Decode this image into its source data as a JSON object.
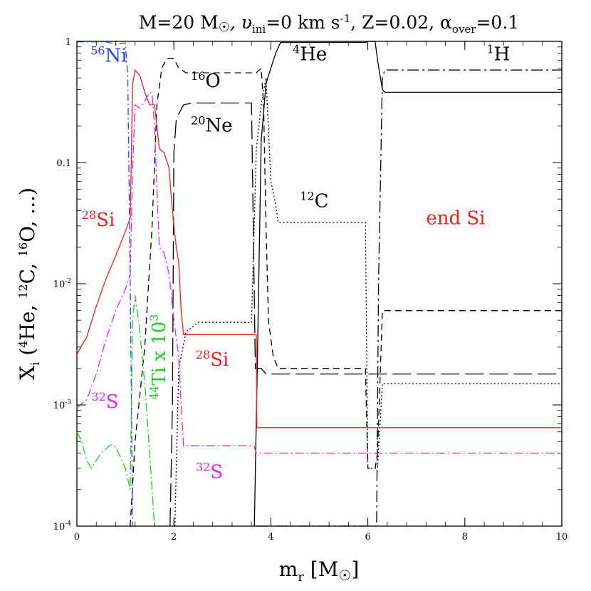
{
  "chart_data": {
    "type": "line",
    "title": "M=20 M☉, υini=0 km s⁻¹, Z=0.02, αover=0.1",
    "title_parts": {
      "mass": "M=20 M",
      "sun": "☉",
      "vel": ", υ",
      "vel_sub": "ini",
      "vel_val": "=0 km s",
      "vel_exp": "-1",
      "z": ", Z=0.02, α",
      "alpha_sub": "over",
      "alpha_val": "=0.1"
    },
    "xlabel": "m_r [M☉]",
    "xlabel_parts": {
      "m": "m",
      "sub": "r",
      "open": " [M",
      "sun": "☉",
      "close": "]"
    },
    "ylabel": "X_i (4He, 12C, 16O, ...)",
    "ylabel_parts": {
      "x": "X",
      "sub": "i",
      "rest1": " (",
      "he_sup": "4",
      "he": "He, ",
      "c_sup": "12",
      "c": "C, ",
      "o_sup": "16",
      "o": "O, ...)"
    },
    "xlim": [
      0,
      10
    ],
    "ylim": [
      0.0001,
      1
    ],
    "yscale": "log",
    "x_ticks": [
      "0",
      "2",
      "4",
      "6",
      "8",
      "10"
    ],
    "y_ticks": [
      {
        "value": 1,
        "label": "1",
        "exp": ""
      },
      {
        "value": 0.1,
        "label": "0.1",
        "exp": ""
      },
      {
        "value": 0.01,
        "label": "10",
        "exp": "-2"
      },
      {
        "value": 0.001,
        "label": "10",
        "exp": "-3"
      },
      {
        "value": 0.0001,
        "label": "10",
        "exp": "-4"
      }
    ],
    "colors": {
      "black": "#000000",
      "red": "#ff1a1a",
      "magenta": "#ee22ee",
      "blue": "#2244ff",
      "green": "#22cc22"
    },
    "annotations": [
      {
        "id": "ni56",
        "sup": "56",
        "text": "Ni",
        "color": "#2244ff",
        "x": 0.28,
        "y": 0.68
      },
      {
        "id": "o16",
        "sup": "16",
        "text": "O",
        "color": "#000000",
        "x": 2.35,
        "y": 0.42
      },
      {
        "id": "ne20",
        "sup": "20",
        "text": "Ne",
        "color": "#000000",
        "x": 2.35,
        "y": 0.18
      },
      {
        "id": "he4",
        "sup": "4",
        "text": "He",
        "color": "#000000",
        "x": 4.45,
        "y": 0.7
      },
      {
        "id": "h1",
        "sup": "1",
        "text": "H",
        "color": "#000000",
        "x": 8.45,
        "y": 0.7
      },
      {
        "id": "si28-left",
        "sup": "28",
        "text": "Si",
        "color": "#ff1a1a",
        "x": 0.1,
        "y": 0.03
      },
      {
        "id": "c12",
        "sup": "12",
        "text": "C",
        "color": "#000000",
        "x": 4.6,
        "y": 0.043
      },
      {
        "id": "end-si",
        "sup": "",
        "text": "end Si",
        "color": "#ff1a1a",
        "x": 7.2,
        "y": 0.031
      },
      {
        "id": "si28-mid",
        "sup": "28",
        "text": "Si",
        "color": "#ff1a1a",
        "x": 2.45,
        "y": 0.0021
      },
      {
        "id": "s32-left",
        "sup": "32",
        "text": "S",
        "color": "#ee22ee",
        "x": 0.3,
        "y": 0.00095
      },
      {
        "id": "s32-mid",
        "sup": "32",
        "text": "S",
        "color": "#ee22ee",
        "x": 2.45,
        "y": 0.00025
      }
    ],
    "ti44_label": {
      "sup": "44",
      "text": "Ti x 10",
      "exp": "3",
      "color": "#22cc22",
      "x": 1.7,
      "y": 0.0011
    },
    "series": [
      {
        "name": "1H",
        "color": "#000000",
        "dash": "16,5,3,5",
        "points": [
          [
            3.7,
            0.0001
          ],
          [
            3.8,
            0.0001
          ],
          [
            4.3,
            0.0001
          ],
          [
            6.18,
            0.0001
          ],
          [
            6.22,
            0.01
          ],
          [
            6.3,
            0.5
          ],
          [
            6.35,
            0.58
          ],
          [
            10,
            0.58
          ]
        ]
      },
      {
        "name": "4He",
        "color": "#000000",
        "dash": "",
        "points": [
          [
            3.66,
            0.0001
          ],
          [
            3.72,
            0.002
          ],
          [
            3.8,
            0.15
          ],
          [
            3.9,
            0.45
          ],
          [
            4.1,
            0.8
          ],
          [
            4.2,
            0.98
          ],
          [
            5.95,
            0.98
          ],
          [
            6.0,
            1.0
          ],
          [
            6.15,
            1.0
          ],
          [
            6.2,
            0.7
          ],
          [
            6.3,
            0.4
          ],
          [
            6.35,
            0.38
          ],
          [
            10,
            0.38
          ]
        ]
      },
      {
        "name": "16O",
        "color": "#000000",
        "dash": "9,6",
        "points": [
          [
            1.1,
            0.0001
          ],
          [
            1.2,
            0.0005
          ],
          [
            1.4,
            0.003
          ],
          [
            1.55,
            0.03
          ],
          [
            1.65,
            0.3
          ],
          [
            1.75,
            0.6
          ],
          [
            1.85,
            0.72
          ],
          [
            2.0,
            0.72
          ],
          [
            2.1,
            0.6
          ],
          [
            2.25,
            0.55
          ],
          [
            3.7,
            0.55
          ],
          [
            3.8,
            0.6
          ],
          [
            3.85,
            0.3
          ],
          [
            3.9,
            0.03
          ],
          [
            3.95,
            0.005
          ],
          [
            4.05,
            0.0025
          ],
          [
            4.15,
            0.002
          ],
          [
            5.95,
            0.002
          ],
          [
            6.0,
            0.0003
          ],
          [
            6.15,
            0.0003
          ],
          [
            6.2,
            0.0004
          ],
          [
            6.3,
            0.006
          ],
          [
            10,
            0.006
          ]
        ]
      },
      {
        "name": "20Ne",
        "color": "#000000",
        "dash": "26,8",
        "points": [
          [
            1.92,
            0.0001
          ],
          [
            1.97,
            0.001
          ],
          [
            2.0,
            0.12
          ],
          [
            2.05,
            0.23
          ],
          [
            2.2,
            0.3
          ],
          [
            2.4,
            0.31
          ],
          [
            3.6,
            0.31
          ],
          [
            3.68,
            0.002
          ],
          [
            3.8,
            0.002
          ],
          [
            3.9,
            0.0018
          ],
          [
            10,
            0.0018
          ]
        ]
      },
      {
        "name": "12C",
        "color": "#000000",
        "dash": "2,3",
        "points": [
          [
            2.02,
            0.0001
          ],
          [
            2.1,
            0.002
          ],
          [
            2.25,
            0.004
          ],
          [
            2.5,
            0.0048
          ],
          [
            3.6,
            0.0048
          ],
          [
            3.7,
            0.13
          ],
          [
            3.8,
            0.3
          ],
          [
            3.9,
            0.5
          ],
          [
            4.0,
            0.07
          ],
          [
            4.1,
            0.045
          ],
          [
            4.15,
            0.032
          ],
          [
            5.95,
            0.032
          ],
          [
            6.0,
            0.0003
          ],
          [
            6.2,
            0.0003
          ],
          [
            6.3,
            0.0015
          ],
          [
            10,
            0.0015
          ]
        ]
      },
      {
        "name": "28Si",
        "color": "#ff1a1a",
        "dash": "",
        "points": [
          [
            0,
            0.0026
          ],
          [
            0.1,
            0.0031
          ],
          [
            0.2,
            0.0036
          ],
          [
            0.4,
            0.0065
          ],
          [
            0.6,
            0.011
          ],
          [
            0.8,
            0.017
          ],
          [
            1.0,
            0.027
          ],
          [
            1.1,
            0.035
          ],
          [
            1.15,
            0.45
          ],
          [
            1.2,
            0.58
          ],
          [
            1.3,
            0.52
          ],
          [
            1.4,
            0.38
          ],
          [
            1.5,
            0.3
          ],
          [
            1.6,
            0.3
          ],
          [
            1.7,
            0.13
          ],
          [
            1.8,
            0.12
          ],
          [
            1.9,
            0.09
          ],
          [
            1.95,
            0.05
          ],
          [
            2.0,
            0.03
          ],
          [
            2.05,
            0.02
          ],
          [
            2.1,
            0.015
          ],
          [
            2.15,
            0.006
          ],
          [
            2.2,
            0.0038
          ],
          [
            3.7,
            0.0038
          ],
          [
            3.71,
            0.00065
          ],
          [
            10,
            0.00065
          ]
        ]
      },
      {
        "name": "32S",
        "color": "#ee22ee",
        "dash": "12,4,2,4",
        "points": [
          [
            0,
            0.00095
          ],
          [
            0.2,
            0.0011
          ],
          [
            0.4,
            0.0018
          ],
          [
            0.6,
            0.0035
          ],
          [
            0.8,
            0.006
          ],
          [
            1.0,
            0.009
          ],
          [
            1.1,
            0.012
          ],
          [
            1.15,
            0.09
          ],
          [
            1.2,
            0.3
          ],
          [
            1.3,
            0.28
          ],
          [
            1.4,
            0.32
          ],
          [
            1.5,
            0.38
          ],
          [
            1.55,
            0.37
          ],
          [
            1.6,
            0.2
          ],
          [
            1.65,
            0.06
          ],
          [
            1.7,
            0.02
          ],
          [
            1.8,
            0.018
          ],
          [
            1.9,
            0.012
          ],
          [
            1.95,
            0.008
          ],
          [
            2.0,
            0.005
          ],
          [
            2.1,
            0.0025
          ],
          [
            2.15,
            0.001
          ],
          [
            2.2,
            0.00046
          ],
          [
            3.65,
            0.00046
          ],
          [
            3.7,
            0.0004
          ],
          [
            10,
            0.0004
          ]
        ]
      },
      {
        "name": "56Ni",
        "color": "#2244ff",
        "dash": "10,4,2,4",
        "points": [
          [
            0,
            0.99
          ],
          [
            0.6,
            0.99
          ],
          [
            0.8,
            0.95
          ],
          [
            1.0,
            0.97
          ],
          [
            1.05,
            0.5
          ],
          [
            1.1,
            0.01
          ],
          [
            1.15,
            0.0001
          ]
        ]
      },
      {
        "name": "44Ti x 10^3",
        "color": "#22cc22",
        "dash": "12,4,2,4",
        "points": [
          [
            0,
            0.0006
          ],
          [
            0.1,
            0.0005
          ],
          [
            0.2,
            0.00035
          ],
          [
            0.3,
            0.0003
          ],
          [
            0.4,
            0.00035
          ],
          [
            0.5,
            0.0004
          ],
          [
            0.7,
            0.00047
          ],
          [
            0.8,
            0.00045
          ],
          [
            1.0,
            0.0003
          ],
          [
            1.1,
            0.0002
          ],
          [
            1.15,
            0.005
          ],
          [
            1.2,
            0.008
          ],
          [
            1.3,
            0.004
          ],
          [
            1.4,
            0.0015
          ],
          [
            1.5,
            0.0004
          ],
          [
            1.55,
            0.0002
          ],
          [
            1.6,
            0.0001
          ]
        ]
      }
    ]
  }
}
